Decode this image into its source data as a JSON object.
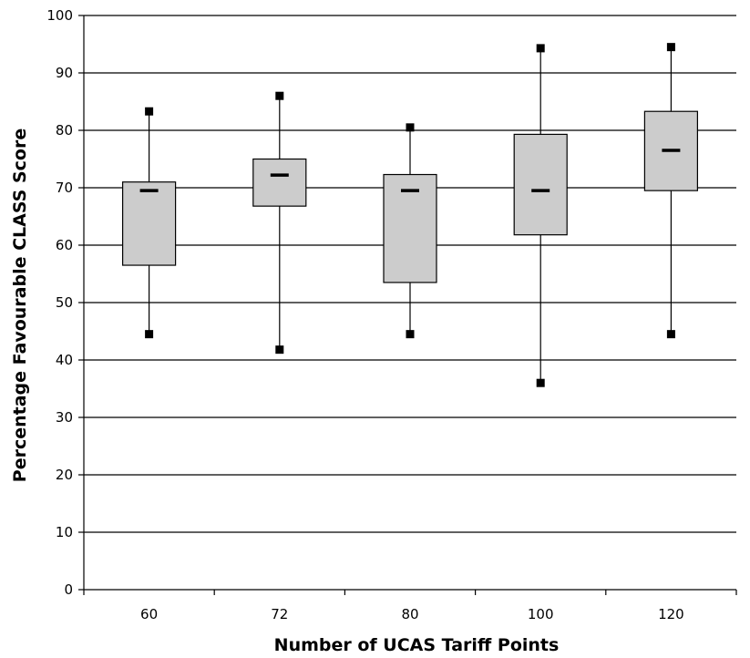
{
  "chart_data": {
    "type": "boxplot",
    "title": "",
    "xlabel": "Number of UCAS Tariff Points",
    "ylabel": "Percentage Favourable CLASS Score",
    "ylim": [
      0,
      100
    ],
    "yticks": [
      0,
      10,
      20,
      30,
      40,
      50,
      60,
      70,
      80,
      90,
      100
    ],
    "grid": true,
    "categories": [
      "60",
      "72",
      "80",
      "100",
      "120"
    ],
    "boxes": [
      {
        "category": "60",
        "min": 44.5,
        "q1": 56.5,
        "median": 69.5,
        "q3": 71.0,
        "max": 83.3
      },
      {
        "category": "72",
        "min": 41.8,
        "q1": 66.8,
        "median": 72.2,
        "q3": 75.0,
        "max": 86.0
      },
      {
        "category": "80",
        "min": 44.5,
        "q1": 53.5,
        "median": 69.5,
        "q3": 72.3,
        "max": 80.5
      },
      {
        "category": "100",
        "min": 36.0,
        "q1": 61.8,
        "median": 69.5,
        "q3": 79.3,
        "max": 94.3
      },
      {
        "category": "120",
        "min": 44.5,
        "q1": 69.5,
        "median": 76.5,
        "q3": 83.3,
        "max": 94.5
      }
    ],
    "colors": {
      "box_fill": "#cccccc",
      "stroke": "#000000",
      "grid": "#000000"
    }
  }
}
